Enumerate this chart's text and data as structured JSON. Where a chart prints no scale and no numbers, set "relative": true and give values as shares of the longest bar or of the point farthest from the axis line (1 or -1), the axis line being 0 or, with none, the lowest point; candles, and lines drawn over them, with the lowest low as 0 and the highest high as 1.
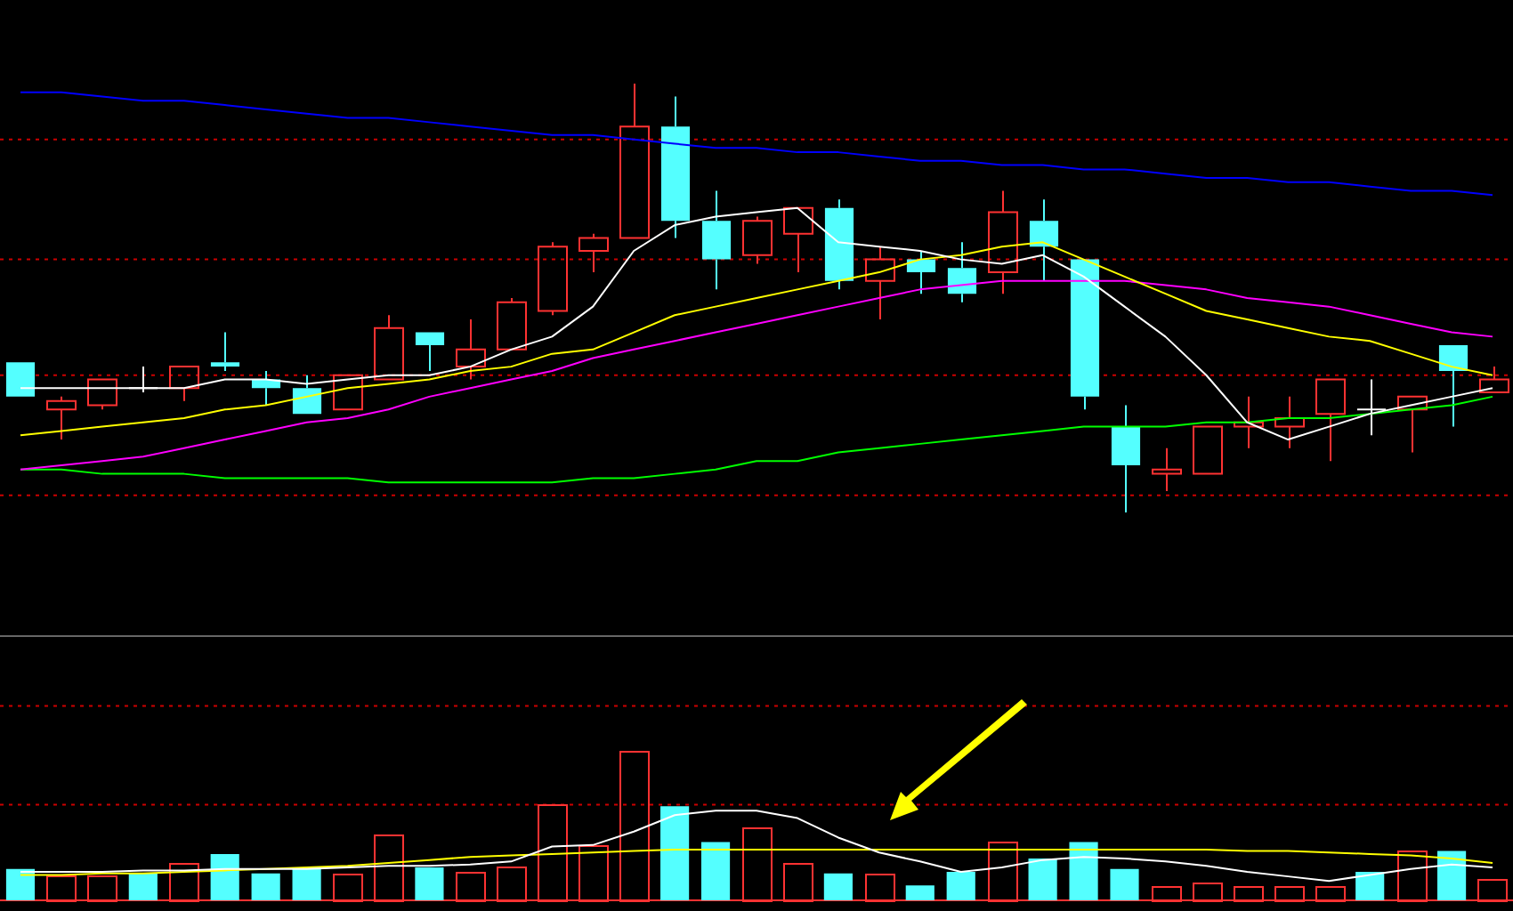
{
  "chart_data": [
    {
      "type": "candlestick",
      "relative": true,
      "marker": "none",
      "categories": [
        null,
        null,
        null,
        null,
        null,
        null,
        null,
        null,
        null,
        null,
        null,
        null,
        null,
        null,
        null,
        null,
        null,
        null,
        null,
        null,
        null,
        null,
        null,
        null,
        null,
        null,
        null,
        null,
        null,
        null,
        null,
        null,
        null,
        null,
        null,
        null,
        null
      ],
      "ohlc": [
        [
          0.35,
          0.35,
          0.27,
          0.27
        ],
        [
          0.24,
          0.27,
          0.17,
          0.26
        ],
        [
          0.25,
          0.31,
          0.24,
          0.31
        ],
        [
          0.29,
          0.34,
          0.28,
          0.29
        ],
        [
          0.29,
          0.34,
          0.26,
          0.34
        ],
        [
          0.35,
          0.42,
          0.33,
          0.34
        ],
        [
          0.31,
          0.33,
          0.25,
          0.29
        ],
        [
          0.29,
          0.32,
          0.23,
          0.23
        ],
        [
          0.24,
          0.32,
          0.24,
          0.32
        ],
        [
          0.31,
          0.46,
          0.31,
          0.43
        ],
        [
          0.42,
          0.42,
          0.33,
          0.39
        ],
        [
          0.34,
          0.45,
          0.31,
          0.38
        ],
        [
          0.38,
          0.5,
          0.38,
          0.49
        ],
        [
          0.47,
          0.63,
          0.46,
          0.62
        ],
        [
          0.61,
          0.65,
          0.56,
          0.64
        ],
        [
          0.64,
          1,
          0.64,
          0.9
        ],
        [
          0.9,
          0.97,
          0.64,
          0.68
        ],
        [
          0.68,
          0.75,
          0.52,
          0.59
        ],
        [
          0.6,
          0.69,
          0.58,
          0.68
        ],
        [
          0.65,
          0.71,
          0.56,
          0.71
        ],
        [
          0.71,
          0.73,
          0.52,
          0.54
        ],
        [
          0.54,
          0.62,
          0.45,
          0.59
        ],
        [
          0.59,
          0.61,
          0.51,
          0.56
        ],
        [
          0.57,
          0.63,
          0.49,
          0.51
        ],
        [
          0.56,
          0.75,
          0.51,
          0.7
        ],
        [
          0.68,
          0.73,
          0.54,
          0.62
        ],
        [
          0.59,
          0.59,
          0.24,
          0.27
        ],
        [
          0.2,
          0.25,
          0,
          0.11
        ],
        [
          0.09,
          0.15,
          0.05,
          0.1
        ],
        [
          0.09,
          0.2,
          0.09,
          0.2
        ],
        [
          0.2,
          0.27,
          0.15,
          0.21
        ],
        [
          0.2,
          0.27,
          0.15,
          0.22
        ],
        [
          0.23,
          0.31,
          0.12,
          0.31
        ],
        [
          0.24,
          0.31,
          0.18,
          0.24
        ],
        [
          0.24,
          0.27,
          0.14,
          0.27
        ],
        [
          0.39,
          0.39,
          0.2,
          0.33
        ],
        [
          0.28,
          0.34,
          0.28,
          0.31
        ]
      ],
      "colors": [
        "#54ffff",
        "#ff3232",
        "#ff3232",
        "#ffffff",
        "#ff3232",
        "#54ffff",
        "#54ffff",
        "#54ffff",
        "#ff3232",
        "#ff3232",
        "#54ffff",
        "#ff3232",
        "#ff3232",
        "#ff3232",
        "#ff3232",
        "#ff3232",
        "#54ffff",
        "#54ffff",
        "#ff3232",
        "#ff3232",
        "#54ffff",
        "#ff3232",
        "#54ffff",
        "#54ffff",
        "#ff3232",
        "#54ffff",
        "#54ffff",
        "#54ffff",
        "#ff3232",
        "#ff3232",
        "#ff3232",
        "#ff3232",
        "#ff3232",
        "#ffffff",
        "#ff3232",
        "#54ffff",
        "#ff3232"
      ],
      "series": [
        {
          "type": "line",
          "color": "#ffffff",
          "values": [
            0.29,
            0.29,
            0.29,
            0.29,
            0.29,
            0.31,
            0.31,
            0.3,
            0.31,
            0.32,
            0.32,
            0.34,
            0.38,
            0.41,
            0.48,
            0.61,
            0.67,
            0.69,
            0.7,
            0.71,
            0.63,
            0.62,
            0.61,
            0.59,
            0.58,
            0.6,
            0.55,
            0.48,
            0.41,
            0.32,
            0.21,
            0.17,
            0.2,
            0.23,
            0.25,
            0.27,
            0.29
          ]
        },
        {
          "type": "line",
          "color": "#ffff00",
          "values": [
            0.18,
            0.19,
            0.2,
            0.21,
            0.22,
            0.24,
            0.25,
            0.27,
            0.29,
            0.3,
            0.31,
            0.33,
            0.34,
            0.37,
            0.38,
            0.42,
            0.46,
            0.48,
            0.5,
            0.52,
            0.54,
            0.56,
            0.59,
            0.6,
            0.62,
            0.63,
            0.59,
            0.55,
            0.51,
            0.47,
            0.45,
            0.43,
            0.41,
            0.4,
            0.37,
            0.34,
            0.32
          ]
        },
        {
          "type": "line",
          "color": "#ff00ff",
          "values": [
            0.1,
            0.11,
            0.12,
            0.13,
            0.15,
            0.17,
            0.19,
            0.21,
            0.22,
            0.24,
            0.27,
            0.29,
            0.31,
            0.33,
            0.36,
            0.38,
            0.4,
            0.42,
            0.44,
            0.46,
            0.48,
            0.5,
            0.52,
            0.53,
            0.54,
            0.54,
            0.54,
            0.54,
            0.53,
            0.52,
            0.5,
            0.49,
            0.48,
            0.46,
            0.44,
            0.42,
            0.41
          ]
        },
        {
          "type": "line",
          "color": "#00ff00",
          "values": [
            0.1,
            0.1,
            0.09,
            0.09,
            0.09,
            0.08,
            0.08,
            0.08,
            0.08,
            0.07,
            0.07,
            0.07,
            0.07,
            0.07,
            0.08,
            0.08,
            0.09,
            0.1,
            0.12,
            0.12,
            0.14,
            0.15,
            0.16,
            0.17,
            0.18,
            0.19,
            0.2,
            0.2,
            0.2,
            0.21,
            0.21,
            0.22,
            0.22,
            0.23,
            0.24,
            0.25,
            0.27
          ]
        },
        {
          "type": "line",
          "color": "#0000ff",
          "values": [
            0.98,
            0.98,
            0.97,
            0.96,
            0.96,
            0.95,
            0.94,
            0.93,
            0.92,
            0.92,
            0.91,
            0.9,
            0.89,
            0.88,
            0.88,
            0.87,
            0.86,
            0.85,
            0.85,
            0.84,
            0.84,
            0.83,
            0.82,
            0.82,
            0.81,
            0.81,
            0.8,
            0.8,
            0.79,
            0.78,
            0.78,
            0.77,
            0.77,
            0.76,
            0.75,
            0.75,
            0.74
          ]
        }
      ],
      "ref_lines": [
        {
          "axis": "y",
          "value": 0.87,
          "color": "#cc0000",
          "line_style": "dotted"
        },
        {
          "axis": "y",
          "value": 0.59,
          "color": "#cc0000",
          "line_style": "dotted"
        },
        {
          "axis": "y",
          "value": 0.32,
          "color": "#cc0000",
          "line_style": "dotted"
        },
        {
          "axis": "y",
          "value": 0.04,
          "color": "#cc0000",
          "line_style": "dotted"
        }
      ]
    },
    {
      "type": "bar",
      "relative": true,
      "marker": "none",
      "categories": [
        null,
        null,
        null,
        null,
        null,
        null,
        null,
        null,
        null,
        null,
        null,
        null,
        null,
        null,
        null,
        null,
        null,
        null,
        null,
        null,
        null,
        null,
        null,
        null,
        null,
        null,
        null,
        null,
        null,
        null,
        null,
        null,
        null,
        null,
        null,
        null,
        null
      ],
      "values": [
        0.21,
        0.17,
        0.17,
        0.18,
        0.25,
        0.31,
        0.18,
        0.22,
        0.18,
        0.44,
        0.22,
        0.19,
        0.23,
        0.64,
        0.37,
        1,
        0.63,
        0.39,
        0.49,
        0.25,
        0.18,
        0.18,
        0.1,
        0.19,
        0.39,
        0.28,
        0.39,
        0.21,
        0.09,
        0.12,
        0.09,
        0.09,
        0.09,
        0.19,
        0.33,
        0.33,
        0.14
      ],
      "colors": [
        "#54ffff",
        "#ff3232",
        "#ff3232",
        "#54ffff",
        "#ff3232",
        "#54ffff",
        "#54ffff",
        "#54ffff",
        "#ff3232",
        "#ff3232",
        "#54ffff",
        "#ff3232",
        "#ff3232",
        "#ff3232",
        "#ff3232",
        "#ff3232",
        "#54ffff",
        "#54ffff",
        "#ff3232",
        "#ff3232",
        "#54ffff",
        "#ff3232",
        "#54ffff",
        "#54ffff",
        "#ff3232",
        "#54ffff",
        "#54ffff",
        "#54ffff",
        "#ff3232",
        "#ff3232",
        "#ff3232",
        "#ff3232",
        "#ff3232",
        "#54ffff",
        "#ff3232",
        "#54ffff",
        "#ff3232"
      ],
      "series": [
        {
          "type": "line",
          "color": "#ffffff",
          "values": [
            0.19,
            0.19,
            0.19,
            0.2,
            0.2,
            0.21,
            0.21,
            0.21,
            0.22,
            0.23,
            0.23,
            0.24,
            0.26,
            0.36,
            0.37,
            0.46,
            0.57,
            0.6,
            0.6,
            0.55,
            0.42,
            0.32,
            0.26,
            0.19,
            0.22,
            0.27,
            0.29,
            0.28,
            0.26,
            0.23,
            0.19,
            0.16,
            0.13,
            0.17,
            0.21,
            0.24,
            0.22
          ]
        },
        {
          "type": "line",
          "color": "#ffff00",
          "values": [
            0.17,
            0.17,
            0.18,
            0.18,
            0.19,
            0.2,
            0.21,
            0.22,
            0.23,
            0.25,
            0.27,
            0.29,
            0.3,
            0.31,
            0.32,
            0.33,
            0.34,
            0.34,
            0.34,
            0.34,
            0.34,
            0.34,
            0.34,
            0.34,
            0.34,
            0.34,
            0.34,
            0.34,
            0.34,
            0.34,
            0.33,
            0.33,
            0.32,
            0.31,
            0.3,
            0.28,
            0.25
          ]
        }
      ],
      "ref_lines": [
        {
          "axis": "y",
          "value": 1.3,
          "color": "#cc0000",
          "line_style": "dotted"
        },
        {
          "axis": "y",
          "value": 0.64,
          "color": "#cc0000",
          "line_style": "dotted"
        }
      ]
    }
  ]
}
